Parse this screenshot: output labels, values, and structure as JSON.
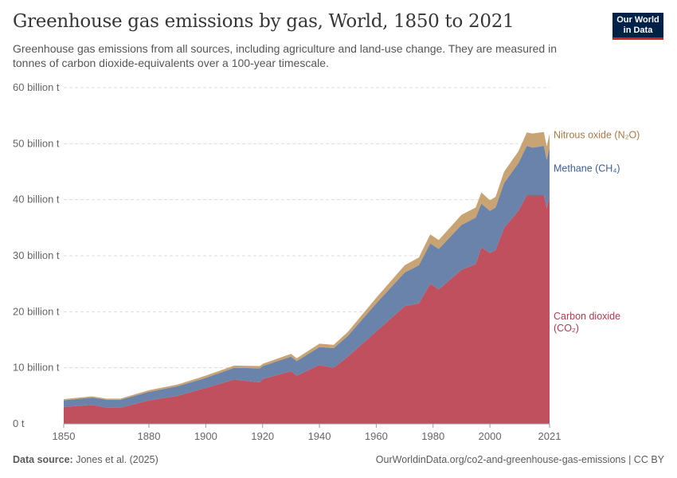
{
  "title": "Greenhouse gas emissions by gas, World, 1850 to 2021",
  "subtitle": "Greenhouse gas emissions from all sources, including agriculture and land-use change. They are measured in tonnes of carbon dioxide-equivalents over a 100-year timescale.",
  "logo": "Our World in Data",
  "footer": {
    "source_label": "Data source:",
    "source": "Jones et al. (2025)",
    "url": "OurWorldinData.org/co2-and-greenhouse-gas-emissions | CC BY"
  },
  "chart_data": {
    "type": "area",
    "stacked": true,
    "ylim": [
      0,
      60
    ],
    "xlim": [
      1850,
      2021
    ],
    "yticks": [
      "0 t",
      "10 billion t",
      "20 billion t",
      "30 billion t",
      "40 billion t",
      "50 billion t",
      "60 billion t"
    ],
    "ytick_values": [
      0,
      10,
      20,
      30,
      40,
      50,
      60
    ],
    "xticks": [
      1850,
      1880,
      1900,
      1920,
      1940,
      1960,
      1980,
      2000,
      2021
    ],
    "grid": true,
    "legend": "right-inline",
    "x": [
      1850,
      1860,
      1865,
      1870,
      1880,
      1890,
      1900,
      1910,
      1919,
      1920,
      1930,
      1932,
      1940,
      1945,
      1950,
      1960,
      1970,
      1975,
      1979,
      1982,
      1990,
      1995,
      1997,
      2000,
      2002,
      2005,
      2010,
      2013,
      2015,
      2019,
      2020,
      2021
    ],
    "series": [
      {
        "name": "Carbon dioxide (CO₂)",
        "color": "#c0505e",
        "label_color": "#b13b4f",
        "values": [
          3.0,
          3.4,
          2.9,
          2.9,
          4.2,
          5.0,
          6.4,
          7.9,
          7.4,
          8.0,
          9.4,
          8.6,
          10.5,
          10.0,
          12.0,
          16.5,
          21.0,
          21.5,
          25.0,
          24.0,
          27.5,
          28.5,
          31.5,
          30.5,
          31.0,
          35.0,
          38.0,
          40.8,
          40.8,
          40.8,
          38.5,
          40.5
        ]
      },
      {
        "name": "Methane (CH₄)",
        "color": "#6a83ab",
        "label_color": "#3e5d94",
        "values": [
          1.2,
          1.3,
          1.4,
          1.4,
          1.5,
          1.7,
          1.8,
          2.1,
          2.5,
          2.3,
          2.6,
          2.6,
          3.2,
          3.5,
          3.7,
          5.0,
          6.0,
          6.8,
          7.2,
          7.2,
          8.0,
          8.3,
          7.8,
          7.5,
          7.6,
          8.0,
          8.5,
          8.8,
          8.5,
          8.8,
          8.6,
          8.8
        ]
      },
      {
        "name": "Nitrous oxide (N₂O)",
        "color": "#c8a373",
        "label_color": "#a87a47",
        "values": [
          0.2,
          0.2,
          0.2,
          0.2,
          0.3,
          0.3,
          0.4,
          0.4,
          0.4,
          0.4,
          0.5,
          0.5,
          0.6,
          0.6,
          0.7,
          1.0,
          1.3,
          1.4,
          1.6,
          1.6,
          1.8,
          1.8,
          2.0,
          1.9,
          1.9,
          2.0,
          2.1,
          2.4,
          2.5,
          2.5,
          2.4,
          2.5
        ]
      }
    ]
  }
}
